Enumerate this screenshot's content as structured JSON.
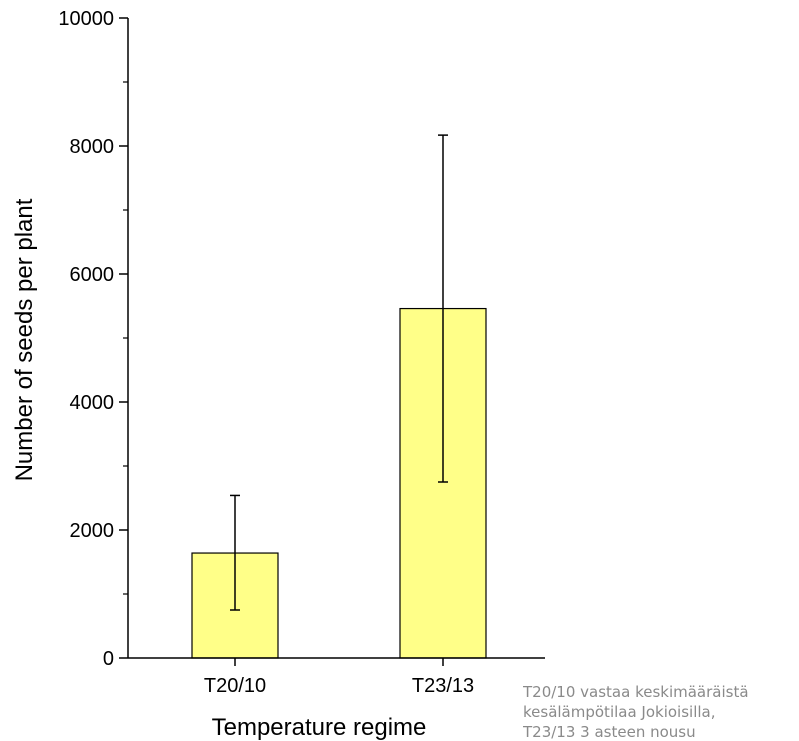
{
  "chart_data": {
    "type": "bar",
    "categories": [
      "T20/10",
      "T23/13"
    ],
    "values": [
      1640,
      5460
    ],
    "error_low": [
      750,
      2750
    ],
    "error_high": [
      2540,
      8170
    ],
    "xlabel": "Temperature regime",
    "ylabel": "Number of seeds per plant",
    "ylim": [
      0,
      10000
    ],
    "yticks": [
      0,
      2000,
      4000,
      6000,
      8000,
      10000
    ],
    "grid": false,
    "colors": {
      "bar_fill": "#ffff88",
      "bar_stroke": "#000000",
      "axis": "#000000"
    }
  },
  "note": {
    "lines": [
      "T20/10 vastaa keskimääräistä",
      "kesälämpötilaa Jokioisilla,",
      "T23/13 3 asteen nousu"
    ],
    "color": "#8a8a8a"
  }
}
